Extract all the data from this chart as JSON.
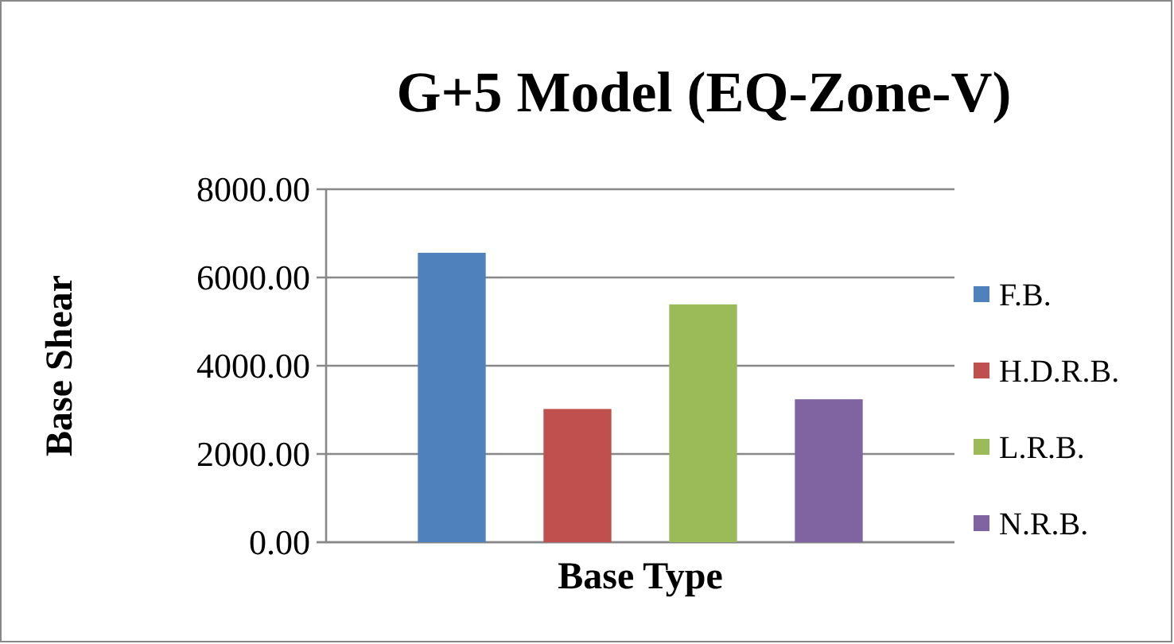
{
  "chart_data": {
    "type": "bar",
    "title": "G+5 Model (EQ-Zone-V)",
    "xlabel": "Base Type",
    "ylabel": "Base Shear",
    "categories": [
      null
    ],
    "series": [
      {
        "name": "F.B.",
        "color": "#4f81bd",
        "values": [
          6560
        ]
      },
      {
        "name": "H.D.R.B.",
        "color": "#c0504d",
        "values": [
          3020
        ]
      },
      {
        "name": "L.R.B.",
        "color": "#9bbb59",
        "values": [
          5390
        ]
      },
      {
        "name": "N.R.B.",
        "color": "#8064a2",
        "values": [
          3240
        ]
      }
    ],
    "ylim": [
      0,
      8000
    ],
    "yticks": [
      {
        "value": 0,
        "label": "0.00"
      },
      {
        "value": 2000,
        "label": "2000.00"
      },
      {
        "value": 4000,
        "label": "4000.00"
      },
      {
        "value": 6000,
        "label": "6000.00"
      },
      {
        "value": 8000,
        "label": "8000.00"
      }
    ],
    "grid": "y",
    "legend": "right"
  }
}
